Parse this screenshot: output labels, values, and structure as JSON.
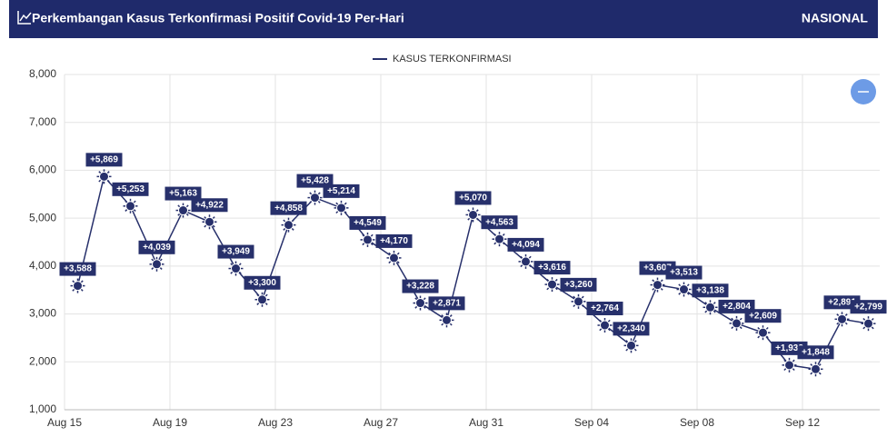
{
  "header": {
    "title": "Perkembangan Kasus Terkonfirmasi Positif Covid-19 Per-Hari",
    "region": "NASIONAL"
  },
  "chart_data": {
    "type": "line",
    "categories": [
      "Aug 15",
      null,
      null,
      null,
      "Aug 19",
      null,
      null,
      null,
      "Aug 23",
      null,
      null,
      null,
      "Aug 27",
      null,
      null,
      null,
      "Aug 31",
      null,
      null,
      null,
      "Sep 04",
      null,
      null,
      null,
      "Sep 08",
      null,
      null,
      null,
      "Sep 12",
      null,
      null
    ],
    "series": [
      {
        "name": "KASUS TERKONFIRMASI",
        "color": "#27306b",
        "values": [
          3588,
          5869,
          5253,
          4039,
          5163,
          4922,
          3949,
          3300,
          4858,
          5428,
          5214,
          4549,
          4170,
          3228,
          2871,
          5070,
          4563,
          4094,
          3616,
          3260,
          2764,
          2340,
          3607,
          3513,
          3138,
          2804,
          2609,
          1932,
          1848,
          2891,
          2799
        ],
        "value_labels": [
          "+3,588",
          "+5,869",
          "+5,253",
          "+4,039",
          "+5,163",
          "+4,922",
          "+3,949",
          "+3,300",
          "+4,858",
          "+5,428",
          "+5,214",
          "+4,549",
          "+4,170",
          "+3,228",
          "+2,871",
          "+5,070",
          "+4,563",
          "+4,094",
          "+3,616",
          "+3,260",
          "+2,764",
          "+2,340",
          "+3,607",
          "+3,513",
          "+3,138",
          "+2,804",
          "+2,609",
          "+1,932",
          "+1,848",
          "+2,891",
          "+2,799"
        ]
      }
    ],
    "ylim": [
      1000,
      8000
    ],
    "yticks": [
      {
        "value": 1000,
        "label": "1,000"
      },
      {
        "value": 2000,
        "label": "2,000"
      },
      {
        "value": 3000,
        "label": "3,000"
      },
      {
        "value": 4000,
        "label": "4,000"
      },
      {
        "value": 5000,
        "label": "5,000"
      },
      {
        "value": 6000,
        "label": "6,000"
      },
      {
        "value": 7000,
        "label": "7,000"
      },
      {
        "value": 8000,
        "label": "8,000"
      }
    ],
    "grid": true,
    "legend": "top"
  }
}
